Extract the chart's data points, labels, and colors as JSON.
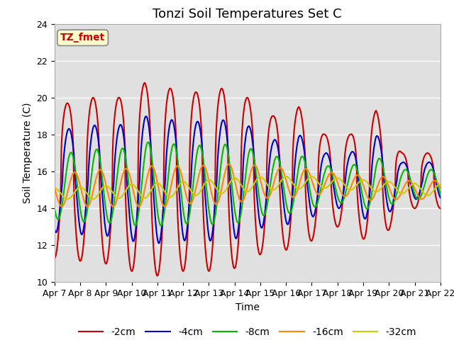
{
  "title": "Tonzi Soil Temperatures Set C",
  "xlabel": "Time",
  "ylabel": "Soil Temperature (C)",
  "ylim": [
    10,
    24
  ],
  "xlim": [
    0,
    15
  ],
  "xtick_labels": [
    "Apr 7",
    "Apr 8",
    "Apr 9",
    "Apr 10",
    "Apr 11",
    "Apr 12",
    "Apr 13",
    "Apr 14",
    "Apr 15",
    "Apr 16",
    "Apr 17",
    "Apr 18",
    "Apr 19",
    "Apr 20",
    "Apr 21",
    "Apr 22"
  ],
  "line_colors": [
    "#cc0000",
    "#0000cc",
    "#00bb00",
    "#ff8800",
    "#cccc00"
  ],
  "line_labels": [
    "-2cm",
    "-4cm",
    "-8cm",
    "-16cm",
    "-32cm"
  ],
  "line_widths": [
    1.5,
    1.5,
    1.5,
    1.5,
    1.5
  ],
  "annotation_text": "TZ_fmet",
  "annotation_color": "#cc0000",
  "annotation_bg": "#ffffcc",
  "bg_color": "#e0e0e0",
  "title_fontsize": 13,
  "axis_fontsize": 10,
  "tick_fontsize": 9,
  "legend_fontsize": 10,
  "points_per_day": 120,
  "num_days": 15,
  "series": [
    {
      "label": "-2cm",
      "color": "#cc0000",
      "amp_profile": [
        4.2,
        4.5,
        4.5,
        5.3,
        5.0,
        4.8,
        5.0,
        4.5,
        3.5,
        4.0,
        2.5,
        2.5,
        3.8,
        1.5,
        1.5
      ],
      "mean_profile": [
        15.5,
        15.5,
        15.5,
        15.5,
        15.5,
        15.5,
        15.5,
        15.5,
        15.5,
        15.5,
        15.5,
        15.5,
        15.5,
        15.5,
        15.5
      ],
      "phase_shift": 0.0,
      "sharpness": 2.5
    },
    {
      "label": "-4cm",
      "color": "#0000cc",
      "amp_profile": [
        2.8,
        3.0,
        3.0,
        3.5,
        3.3,
        3.2,
        3.3,
        3.0,
        2.2,
        2.5,
        1.5,
        1.5,
        2.5,
        1.0,
        1.0
      ],
      "mean_profile": [
        15.5,
        15.5,
        15.5,
        15.5,
        15.5,
        15.5,
        15.5,
        15.5,
        15.5,
        15.5,
        15.5,
        15.5,
        15.5,
        15.5,
        15.5
      ],
      "phase_shift": 0.06,
      "sharpness": 1.5
    },
    {
      "label": "-8cm",
      "color": "#00bb00",
      "amp_profile": [
        1.8,
        2.0,
        2.0,
        2.3,
        2.2,
        2.1,
        2.2,
        2.0,
        1.5,
        1.6,
        1.0,
        1.0,
        1.5,
        0.8,
        0.8
      ],
      "mean_profile": [
        15.2,
        15.2,
        15.2,
        15.3,
        15.3,
        15.3,
        15.3,
        15.3,
        15.3,
        15.3,
        15.3,
        15.3,
        15.3,
        15.3,
        15.3
      ],
      "phase_shift": 0.14,
      "sharpness": 1.0
    },
    {
      "label": "-16cm",
      "color": "#ff8800",
      "amp_profile": [
        0.9,
        1.0,
        1.0,
        1.1,
        1.1,
        1.0,
        1.1,
        1.0,
        0.8,
        0.8,
        0.6,
        0.6,
        0.7,
        0.5,
        0.5
      ],
      "mean_profile": [
        15.0,
        15.1,
        15.1,
        15.2,
        15.2,
        15.3,
        15.3,
        15.4,
        15.4,
        15.4,
        15.4,
        15.2,
        15.1,
        15.0,
        15.0
      ],
      "phase_shift": 0.28,
      "sharpness": 1.0
    },
    {
      "label": "-32cm",
      "color": "#cccc00",
      "amp_profile": [
        0.3,
        0.35,
        0.35,
        0.4,
        0.4,
        0.4,
        0.4,
        0.4,
        0.35,
        0.35,
        0.3,
        0.3,
        0.3,
        0.3,
        0.3
      ],
      "mean_profile": [
        14.8,
        14.85,
        14.9,
        14.95,
        15.0,
        15.1,
        15.2,
        15.3,
        15.35,
        15.4,
        15.4,
        15.3,
        15.2,
        15.1,
        15.0
      ],
      "phase_shift": 0.5,
      "sharpness": 1.0
    }
  ]
}
